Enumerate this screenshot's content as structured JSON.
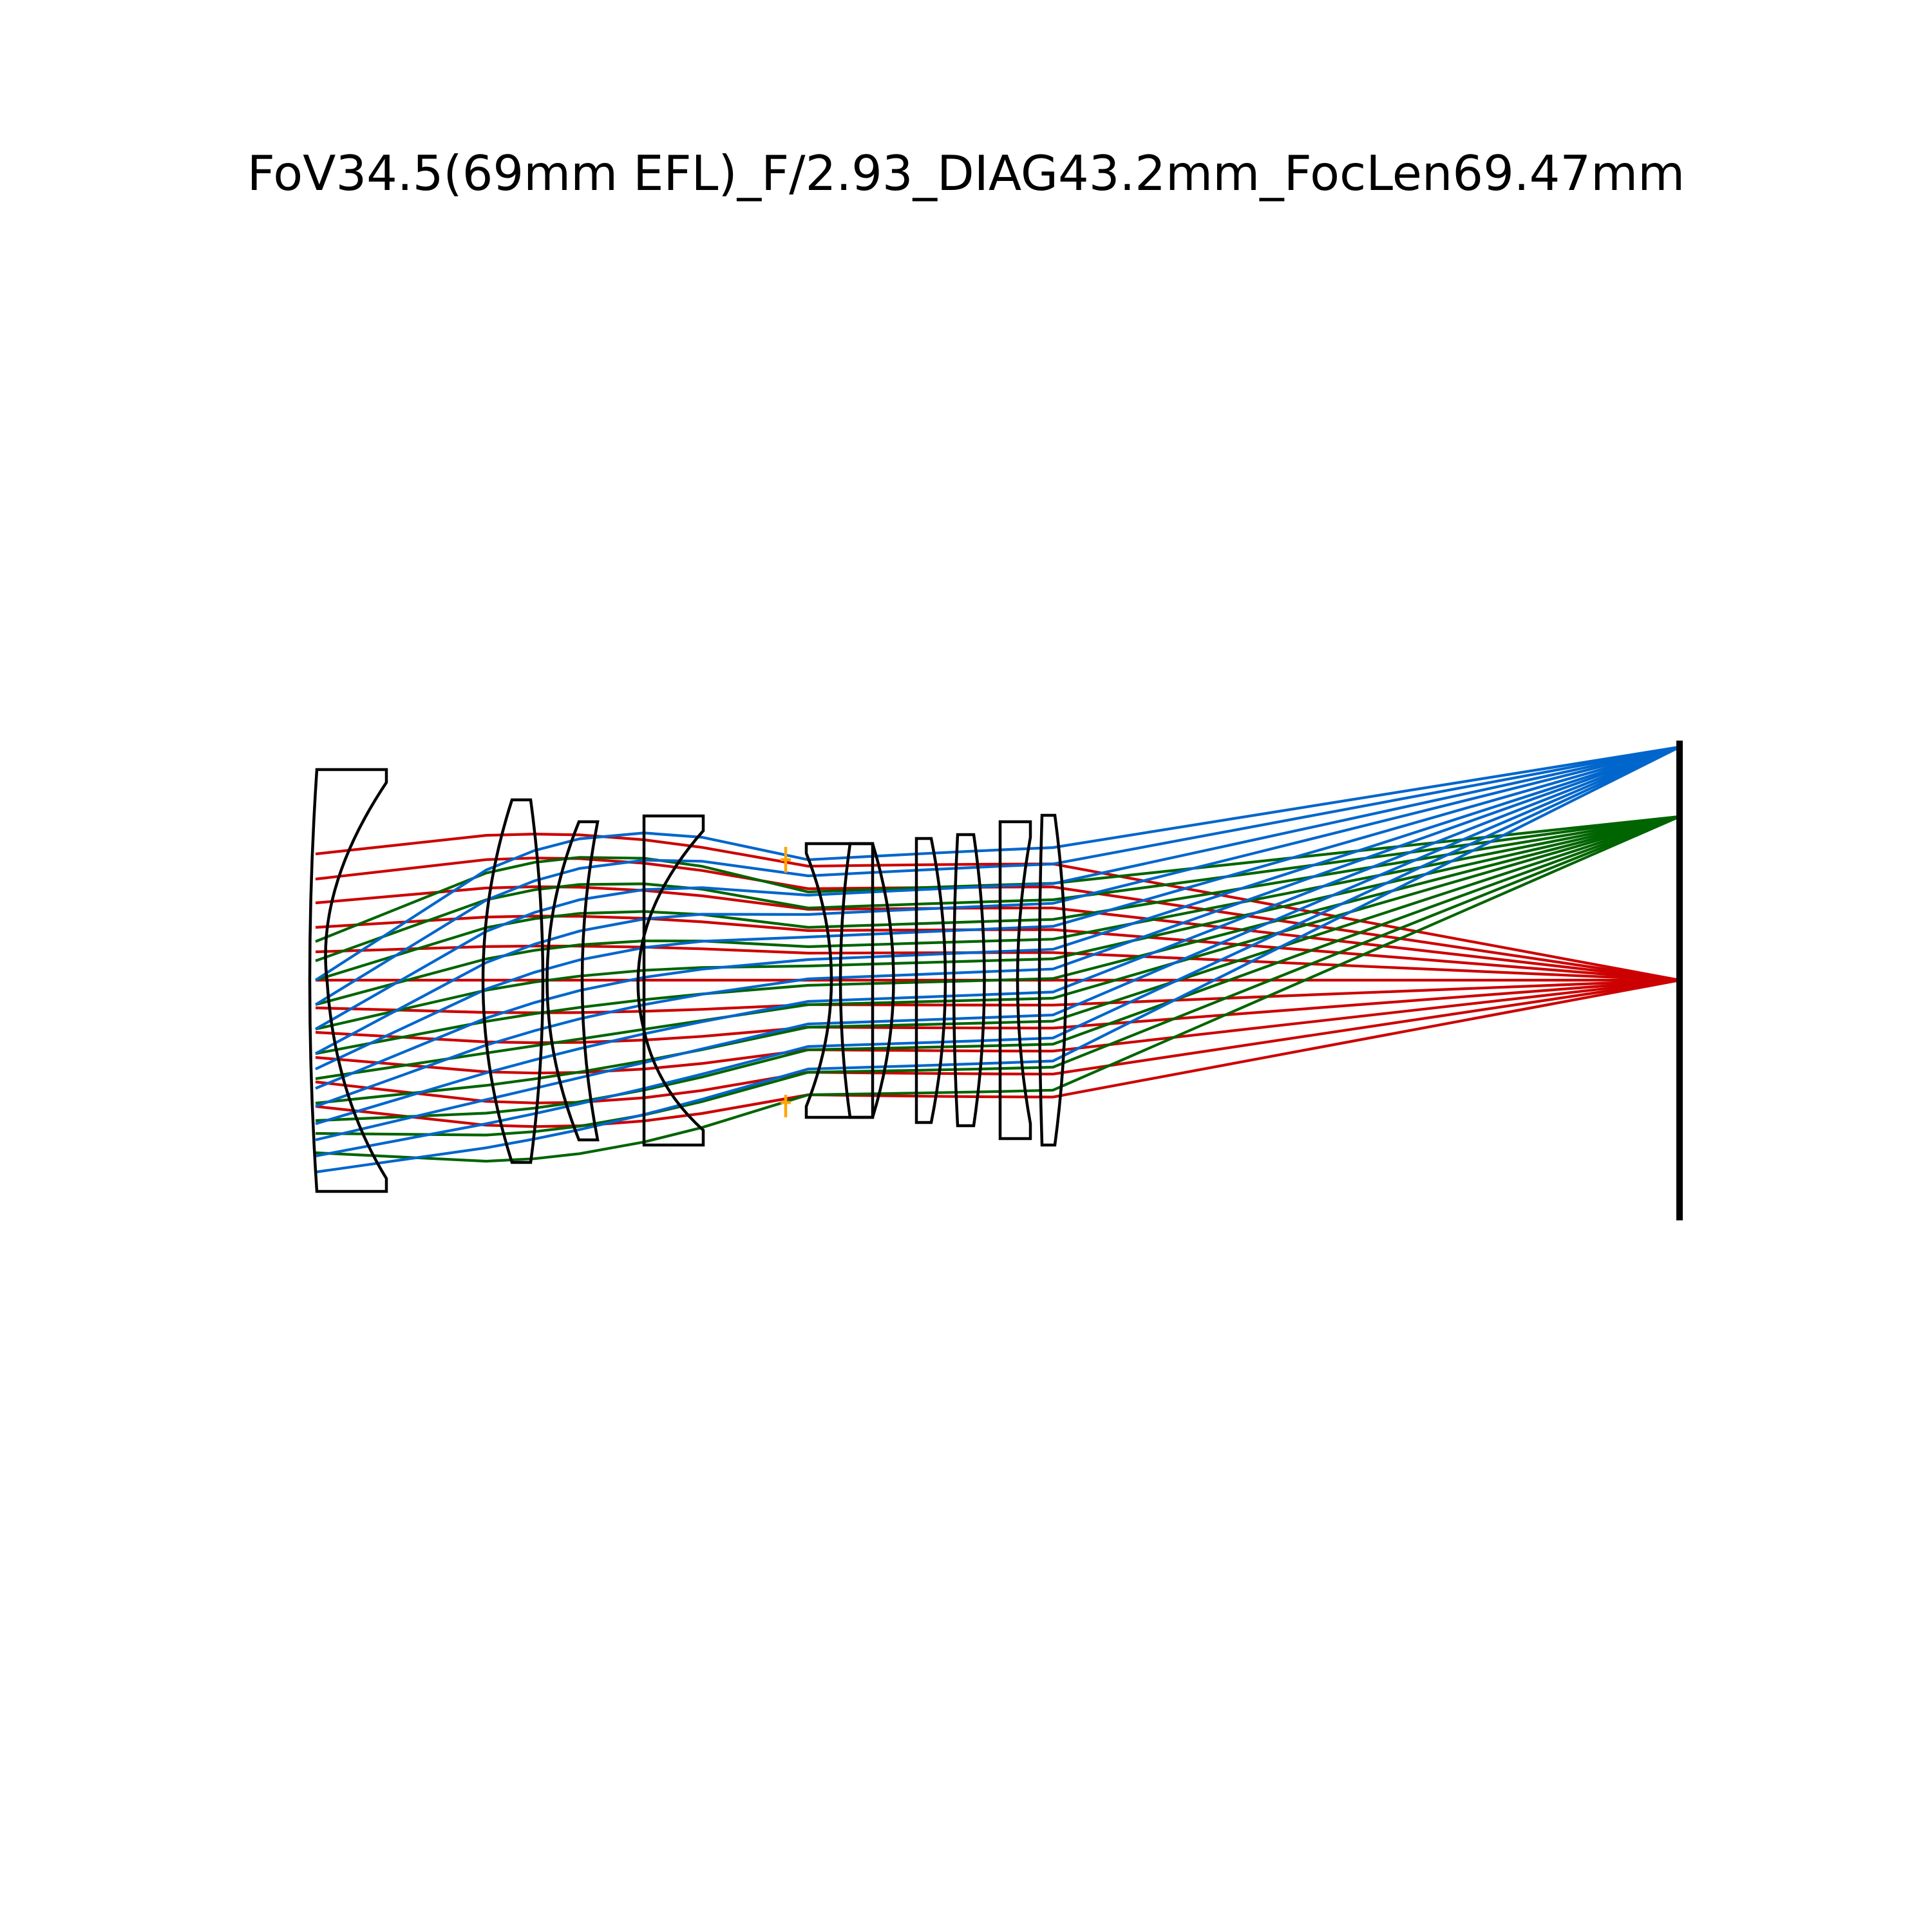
{
  "title": "FoV34.5(69mm EFL)_F/2.93_DIAG43.2mm_FocLen69.47mm",
  "colors": {
    "background": "#ffffff",
    "lens_outline": "#000000",
    "sensor": "#000000",
    "aperture_stop": "#ffa500",
    "field_on_axis": "#cc0000",
    "field_mid": "#006400",
    "field_edge": "#0066cc"
  },
  "fields": [
    {
      "color_key": "field_on_axis",
      "ray_count": 11
    },
    {
      "color_key": "field_mid",
      "ray_count": 11
    },
    {
      "color_key": "field_edge",
      "ray_count": 11
    }
  ],
  "lens_elements": 10
}
